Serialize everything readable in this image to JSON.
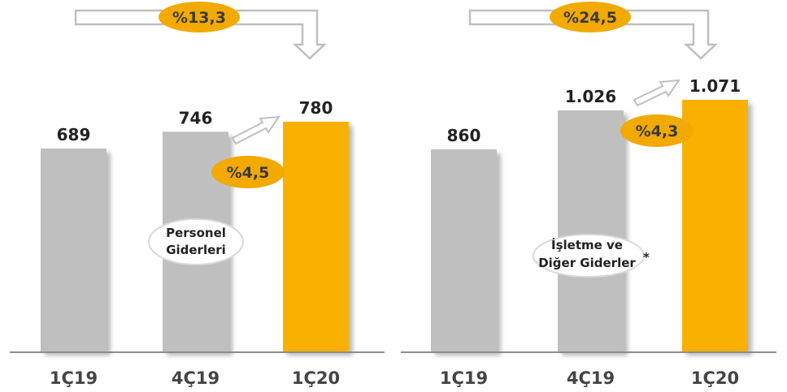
{
  "colors": {
    "gray": "#BFBFBF",
    "orange": "#F9B000",
    "badge": "#F2A900",
    "arrow": "#BFBFBF"
  },
  "chart_data": [
    {
      "type": "bar",
      "categories": [
        "1Ç19",
        "4Ç19",
        "1Ç20"
      ],
      "values": [
        689,
        746,
        780
      ],
      "value_labels": [
        "689",
        "746",
        "780"
      ],
      "highlight": "1Ç20",
      "label_lines": [
        "Personel",
        "Giderleri"
      ],
      "yoy_change": "%13,3",
      "qoq_change": "%4,5"
    },
    {
      "type": "bar",
      "categories": [
        "1Ç19",
        "4Ç19",
        "1Ç20"
      ],
      "values": [
        860,
        1026,
        1071
      ],
      "value_labels": [
        "860",
        "1.026",
        "1.071"
      ],
      "highlight": "1Ç20",
      "label_lines": [
        "İşletme ve",
        "Diğer Giderler"
      ],
      "label_note": "*",
      "yoy_change": "%24,5",
      "qoq_change": "%4,3"
    }
  ]
}
